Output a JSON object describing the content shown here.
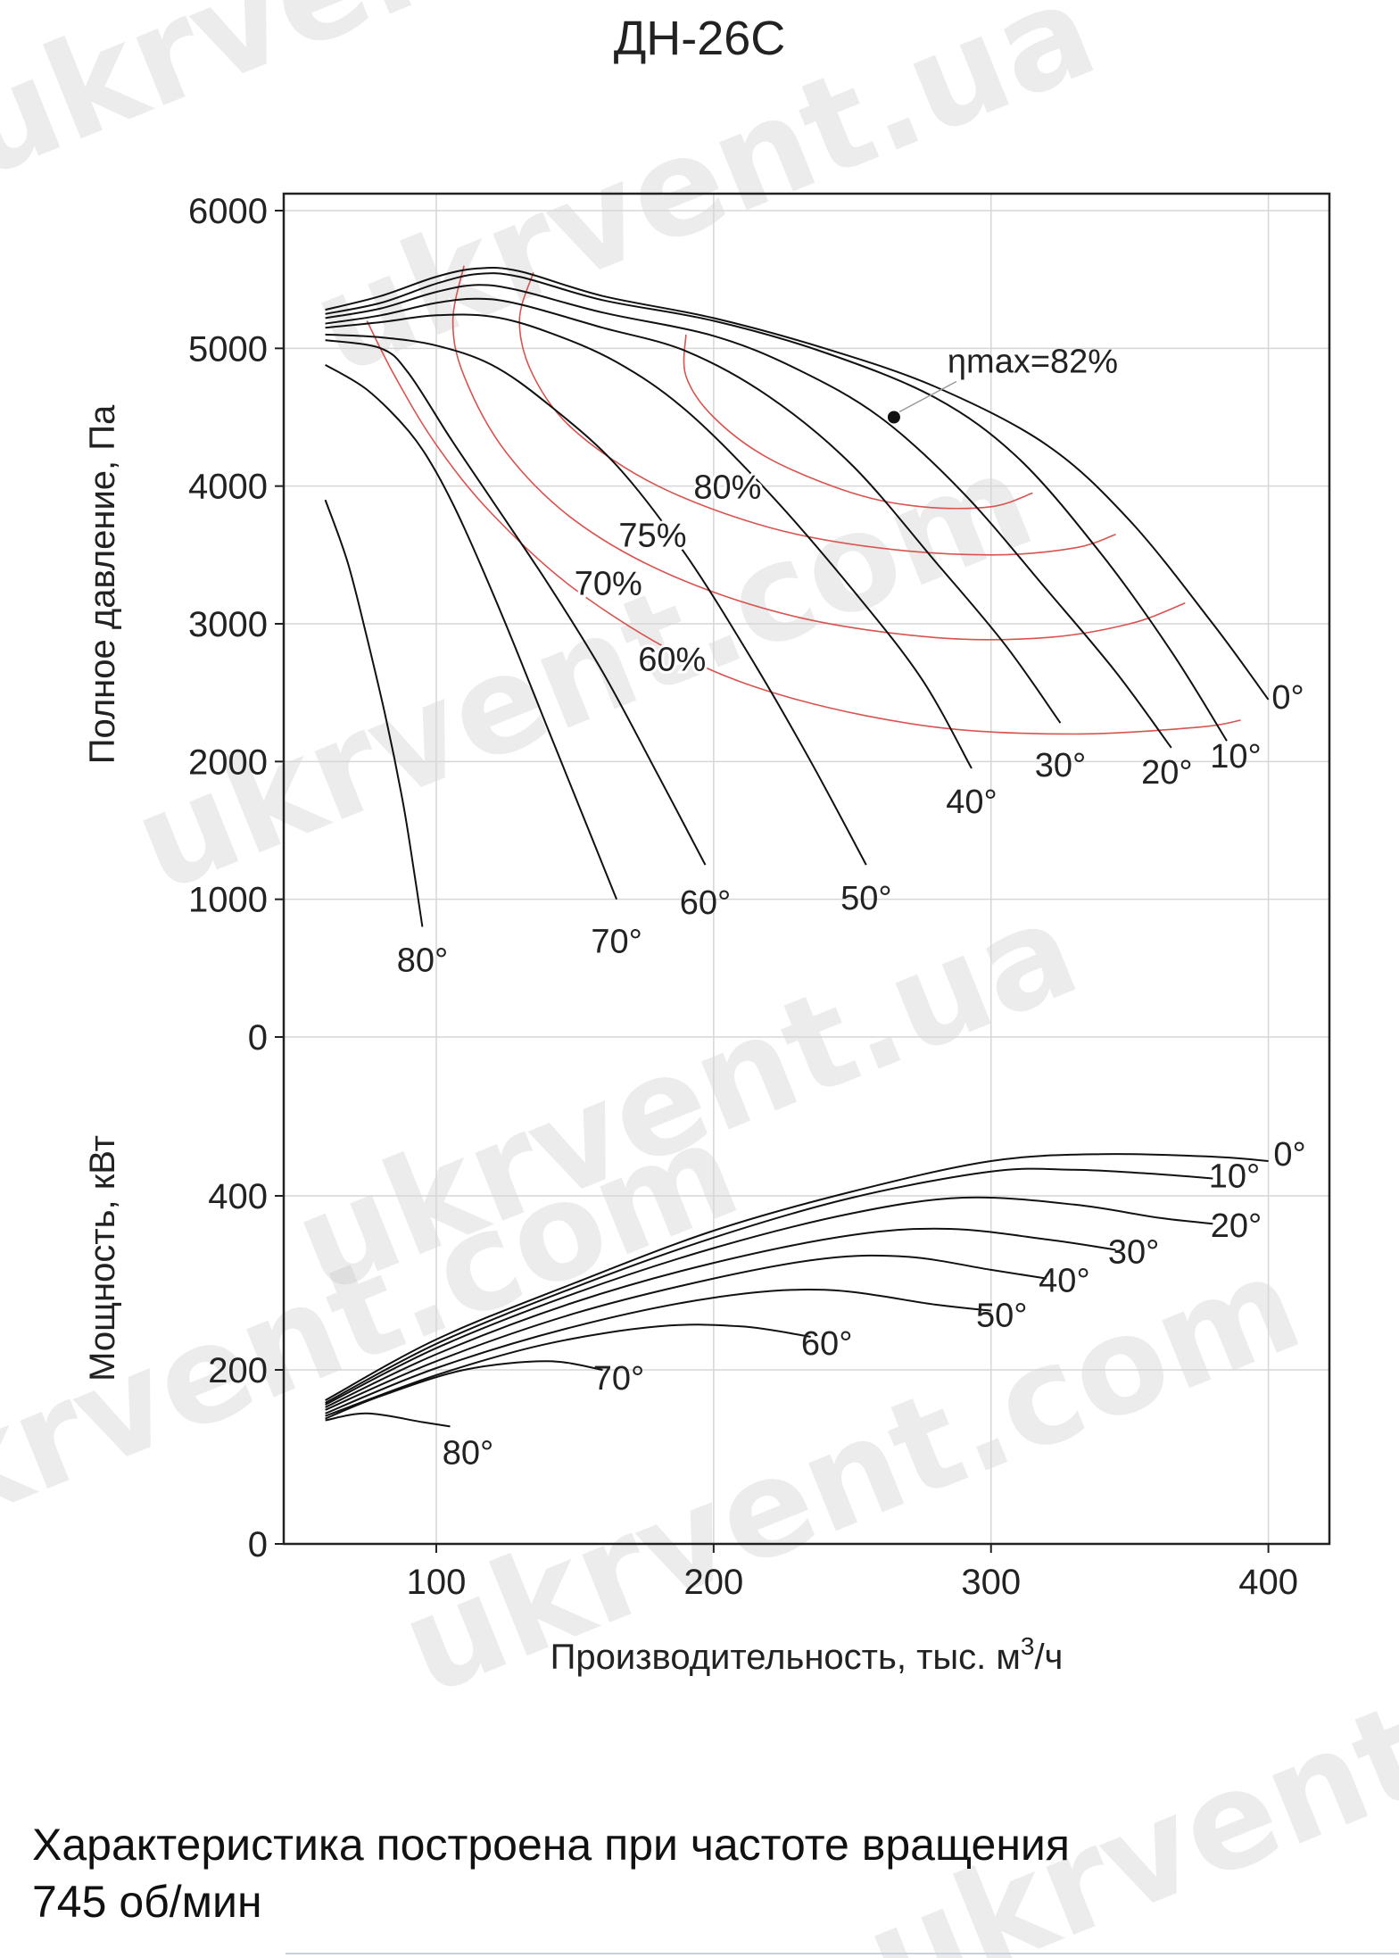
{
  "title": "ДН-26С",
  "note": {
    "line1": "Характеристика построена при частоте вращения",
    "line2": "745 об/мин"
  },
  "watermark": "ukrvent.com",
  "watermark_alt": "ukrvent.ua",
  "chart_data": {
    "type": "line",
    "title": "ДН-26С",
    "xlabel": "Производительность, тыс. м³/ч",
    "xlim": [
      45,
      422
    ],
    "xticks": [
      100,
      200,
      300,
      400
    ],
    "grid": true,
    "panels": [
      {
        "name": "pressure",
        "ylabel": "Полное давление, Па",
        "ylim": [
          0,
          6000
        ],
        "yticks": [
          0,
          1000,
          2000,
          3000,
          4000,
          5000,
          6000
        ],
        "series": [
          {
            "name": "0°",
            "points": [
              [
                60,
                5280
              ],
              [
                80,
                5380
              ],
              [
                100,
                5520
              ],
              [
                115,
                5580
              ],
              [
                130,
                5560
              ],
              [
                160,
                5380
              ],
              [
                200,
                5220
              ],
              [
                240,
                5000
              ],
              [
                280,
                4720
              ],
              [
                320,
                4300
              ],
              [
                350,
                3750
              ],
              [
                380,
                3000
              ],
              [
                400,
                2450
              ]
            ]
          },
          {
            "name": "10°",
            "points": [
              [
                60,
                5250
              ],
              [
                80,
                5330
              ],
              [
                100,
                5470
              ],
              [
                115,
                5540
              ],
              [
                130,
                5520
              ],
              [
                160,
                5350
              ],
              [
                200,
                5200
              ],
              [
                240,
                4970
              ],
              [
                280,
                4640
              ],
              [
                310,
                4200
              ],
              [
                340,
                3500
              ],
              [
                365,
                2800
              ],
              [
                385,
                2150
              ]
            ]
          },
          {
            "name": "20°",
            "points": [
              [
                60,
                5220
              ],
              [
                80,
                5290
              ],
              [
                100,
                5410
              ],
              [
                115,
                5460
              ],
              [
                130,
                5420
              ],
              [
                160,
                5260
              ],
              [
                200,
                5090
              ],
              [
                230,
                4850
              ],
              [
                260,
                4500
              ],
              [
                290,
                3950
              ],
              [
                320,
                3250
              ],
              [
                345,
                2650
              ],
              [
                365,
                2100
              ]
            ]
          },
          {
            "name": "30°",
            "points": [
              [
                60,
                5180
              ],
              [
                80,
                5240
              ],
              [
                100,
                5330
              ],
              [
                115,
                5360
              ],
              [
                130,
                5320
              ],
              [
                160,
                5150
              ],
              [
                190,
                4980
              ],
              [
                220,
                4650
              ],
              [
                250,
                4150
              ],
              [
                280,
                3450
              ],
              [
                305,
                2850
              ],
              [
                325,
                2280
              ]
            ]
          },
          {
            "name": "40°",
            "points": [
              [
                60,
                5150
              ],
              [
                80,
                5190
              ],
              [
                100,
                5240
              ],
              [
                120,
                5230
              ],
              [
                140,
                5120
              ],
              [
                165,
                4900
              ],
              [
                190,
                4550
              ],
              [
                220,
                3950
              ],
              [
                250,
                3250
              ],
              [
                275,
                2600
              ],
              [
                293,
                1950
              ]
            ]
          },
          {
            "name": "50°",
            "points": [
              [
                60,
                5100
              ],
              [
                80,
                5080
              ],
              [
                100,
                5020
              ],
              [
                120,
                4880
              ],
              [
                140,
                4600
              ],
              [
                165,
                4150
              ],
              [
                190,
                3500
              ],
              [
                215,
                2700
              ],
              [
                235,
                2000
              ],
              [
                255,
                1250
              ]
            ]
          },
          {
            "name": "60°",
            "points": [
              [
                60,
                5060
              ],
              [
                80,
                5000
              ],
              [
                90,
                4820
              ],
              [
                105,
                4350
              ],
              [
                120,
                3900
              ],
              [
                140,
                3300
              ],
              [
                160,
                2650
              ],
              [
                180,
                1900
              ],
              [
                197,
                1250
              ]
            ]
          },
          {
            "name": "70°",
            "points": [
              [
                60,
                4880
              ],
              [
                75,
                4700
              ],
              [
                90,
                4400
              ],
              [
                100,
                4100
              ],
              [
                110,
                3700
              ],
              [
                125,
                3000
              ],
              [
                140,
                2250
              ],
              [
                155,
                1500
              ],
              [
                165,
                1000
              ]
            ]
          },
          {
            "name": "80°",
            "points": [
              [
                60,
                3900
              ],
              [
                68,
                3450
              ],
              [
                75,
                2900
              ],
              [
                82,
                2300
              ],
              [
                88,
                1700
              ],
              [
                92,
                1200
              ],
              [
                95,
                800
              ]
            ]
          }
        ],
        "efficiency_curves": [
          {
            "name": "60%",
            "points": [
              [
                75,
                5200
              ],
              [
                85,
                4800
              ],
              [
                100,
                4300
              ],
              [
                120,
                3800
              ],
              [
                150,
                3250
              ],
              [
                190,
                2750
              ],
              [
                230,
                2450
              ],
              [
                280,
                2250
              ],
              [
                330,
                2200
              ],
              [
                375,
                2250
              ],
              [
                390,
                2300
              ]
            ]
          },
          {
            "name": "70%",
            "points": [
              [
                110,
                5600
              ],
              [
                106,
                5200
              ],
              [
                110,
                4800
              ],
              [
                125,
                4250
              ],
              [
                150,
                3750
              ],
              [
                185,
                3350
              ],
              [
                230,
                3050
              ],
              [
                280,
                2900
              ],
              [
                320,
                2900
              ],
              [
                350,
                3000
              ],
              [
                370,
                3150
              ]
            ]
          },
          {
            "name": "75%",
            "points": [
              [
                135,
                5550
              ],
              [
                130,
                5200
              ],
              [
                135,
                4800
              ],
              [
                150,
                4400
              ],
              [
                180,
                4000
              ],
              [
                220,
                3700
              ],
              [
                260,
                3550
              ],
              [
                300,
                3500
              ],
              [
                330,
                3550
              ],
              [
                345,
                3650
              ]
            ]
          },
          {
            "name": "80%",
            "points": [
              [
                190,
                5100
              ],
              [
                190,
                4800
              ],
              [
                200,
                4500
              ],
              [
                220,
                4200
              ],
              [
                250,
                3950
              ],
              [
                275,
                3850
              ],
              [
                300,
                3850
              ],
              [
                315,
                3950
              ]
            ]
          }
        ],
        "annotations": [
          {
            "text": "ηmax=82%",
            "x": 265,
            "y": 4500
          }
        ]
      },
      {
        "name": "power",
        "ylabel": "Мощность, кВт",
        "ylim": [
          0,
          520
        ],
        "yticks": [
          0,
          200,
          400
        ],
        "series": [
          {
            "name": "0°",
            "points": [
              [
                60,
                165
              ],
              [
                100,
                235
              ],
              [
                150,
                300
              ],
              [
                200,
                360
              ],
              [
                250,
                405
              ],
              [
                300,
                440
              ],
              [
                340,
                448
              ],
              [
                380,
                445
              ],
              [
                400,
                440
              ]
            ]
          },
          {
            "name": "10°",
            "points": [
              [
                60,
                162
              ],
              [
                100,
                230
              ],
              [
                150,
                295
              ],
              [
                200,
                352
              ],
              [
                250,
                398
              ],
              [
                300,
                428
              ],
              [
                330,
                430
              ],
              [
                360,
                425
              ],
              [
                380,
                420
              ]
            ]
          },
          {
            "name": "20°",
            "points": [
              [
                60,
                160
              ],
              [
                100,
                225
              ],
              [
                150,
                288
              ],
              [
                200,
                340
              ],
              [
                250,
                380
              ],
              [
                290,
                398
              ],
              [
                330,
                390
              ],
              [
                360,
                375
              ],
              [
                380,
                368
              ]
            ]
          },
          {
            "name": "30°",
            "points": [
              [
                60,
                157
              ],
              [
                100,
                218
              ],
              [
                150,
                278
              ],
              [
                200,
                323
              ],
              [
                250,
                355
              ],
              [
                285,
                362
              ],
              [
                320,
                350
              ],
              [
                345,
                338
              ]
            ]
          },
          {
            "name": "40°",
            "points": [
              [
                60,
                154
              ],
              [
                100,
                210
              ],
              [
                150,
                265
              ],
              [
                200,
                305
              ],
              [
                240,
                328
              ],
              [
                270,
                330
              ],
              [
                300,
                315
              ],
              [
                320,
                305
              ]
            ]
          },
          {
            "name": "50°",
            "points": [
              [
                60,
                150
              ],
              [
                100,
                202
              ],
              [
                150,
                250
              ],
              [
                200,
                283
              ],
              [
                240,
                292
              ],
              [
                280,
                275
              ],
              [
                300,
                268
              ]
            ]
          },
          {
            "name": "60°",
            "points": [
              [
                60,
                147
              ],
              [
                100,
                194
              ],
              [
                140,
                230
              ],
              [
                180,
                250
              ],
              [
                210,
                250
              ],
              [
                235,
                238
              ]
            ]
          },
          {
            "name": "70°",
            "points": [
              [
                60,
                144
              ],
              [
                80,
                170
              ],
              [
                110,
                200
              ],
              [
                140,
                210
              ],
              [
                160,
                200
              ]
            ]
          },
          {
            "name": "80°",
            "points": [
              [
                60,
                142
              ],
              [
                75,
                150
              ],
              [
                95,
                140
              ],
              [
                105,
                135
              ]
            ]
          }
        ]
      }
    ]
  }
}
